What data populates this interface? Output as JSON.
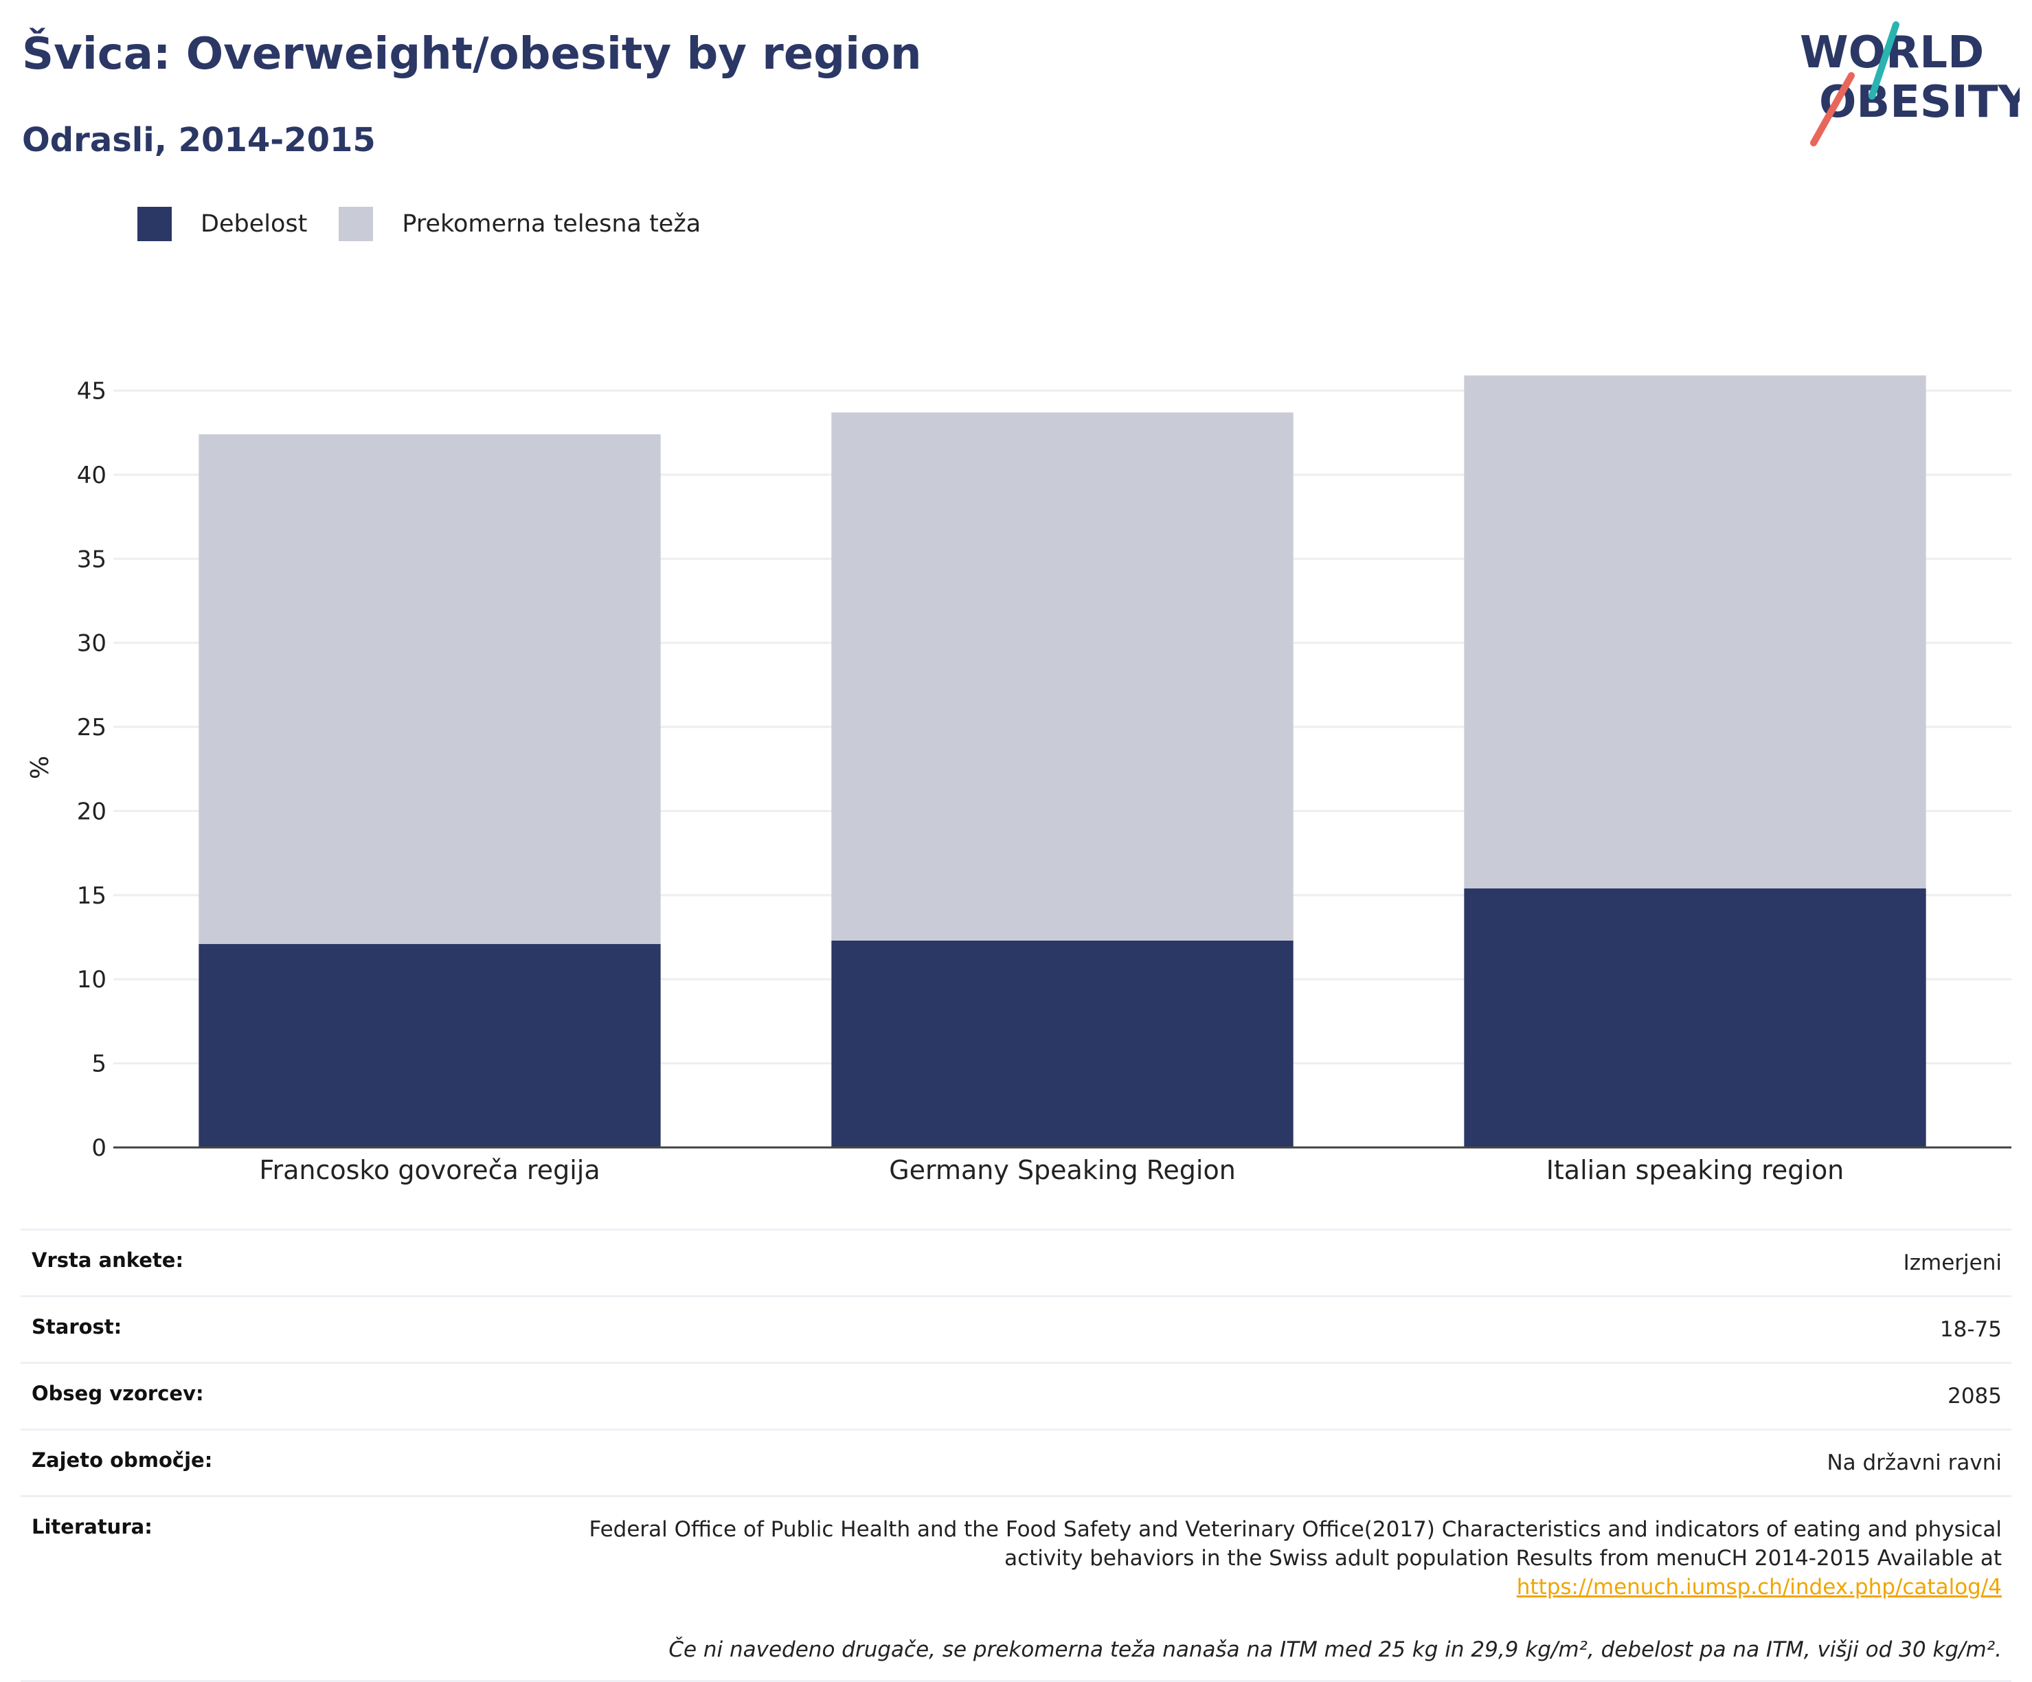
{
  "header": {
    "title": "Švica: Overweight/obesity by region",
    "subtitle": "Odrasli, 2014-2015"
  },
  "logo": {
    "line1": "WORLD",
    "line2": "OBESITY",
    "text_color": "#2b3765",
    "accent_teal": "#2ab3b0",
    "accent_red": "#e8675a"
  },
  "colors": {
    "obesity": "#2b3765",
    "overweight": "#c9cbd7",
    "axis": "#444444",
    "grid": "#eeeeee"
  },
  "legend": {
    "items": [
      {
        "label": "Debelost",
        "color": "#2b3765"
      },
      {
        "label": "Prekomerna telesna teža",
        "color": "#c9cbd7"
      }
    ]
  },
  "chart_data": {
    "type": "bar",
    "stacked": true,
    "categories": [
      "Francosko govoreča regija",
      "Germany Speaking Region",
      "Italian speaking region"
    ],
    "series": [
      {
        "name": "Debelost",
        "values": [
          12.1,
          12.3,
          15.4
        ]
      },
      {
        "name": "Prekomerna telesna teža",
        "values": [
          30.3,
          31.4,
          30.5
        ]
      }
    ],
    "ylabel": "%",
    "ylim": [
      0,
      45
    ],
    "yticks": [
      0,
      5,
      10,
      15,
      20,
      25,
      30,
      35,
      40,
      45
    ],
    "grid": true,
    "legend_position": "top-left"
  },
  "info": {
    "rows": [
      {
        "label": "Vrsta ankete:",
        "value": "Izmerjeni"
      },
      {
        "label": "Starost:",
        "value": "18-75"
      },
      {
        "label": "Obseg vzorcev:",
        "value": "2085"
      },
      {
        "label": "Zajeto območje:",
        "value": "Na državni ravni"
      }
    ],
    "literature": {
      "label": "Literatura:",
      "text": "Federal Office of Public Health and the Food Safety and Veterinary Office(2017) Characteristics and indicators of eating and physical activity behaviors in the Swiss adult population Results from menuCH 2014-2015 Available at",
      "link": "https://menuch.iumsp.ch/index.php/catalog/4"
    },
    "note": "Če ni navedeno drugače, se prekomerna teža nanaša na ITM med 25 kg in 29,9 kg/m², debelost pa na ITM, višji od 30 kg/m²."
  }
}
